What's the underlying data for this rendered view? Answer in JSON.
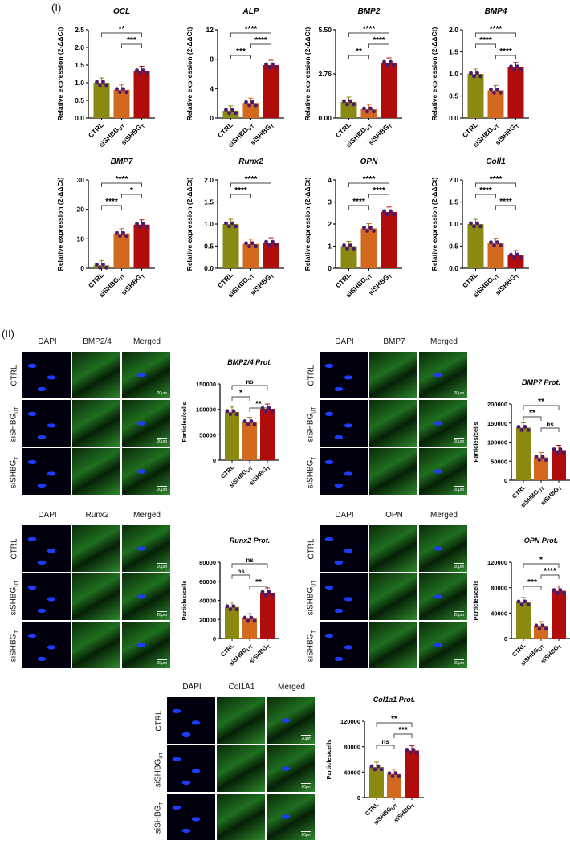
{
  "section_labels": {
    "part1": "(I)",
    "part2": "(II)"
  },
  "colors": {
    "CTRL": "#8a8a12",
    "siSHBG_UT": "#d2691e",
    "siSHBG_T": "#b00c0c",
    "dot": "#4b1a6b",
    "dapi": "#1e3cff",
    "green": "#33c533"
  },
  "groups": [
    "CTRL",
    "siSHBG_UT",
    "siSHBG_T"
  ],
  "group_labels": [
    {
      "main": "CTRL",
      "sub": ""
    },
    {
      "main": "siSHBG",
      "sub": "UT"
    },
    {
      "main": "siSHBG",
      "sub": "T"
    }
  ],
  "microscopy": {
    "columns_suffix": "Merged",
    "dapi": "DAPI",
    "scale_bar": "20μm",
    "panels": [
      {
        "marker": "BMP2/4"
      },
      {
        "marker": "BMP7"
      },
      {
        "marker": "Runx2"
      },
      {
        "marker": "OPN"
      },
      {
        "marker": "Col1A1"
      }
    ]
  },
  "chart_data": [
    {
      "type": "bar",
      "title": "OCL",
      "ylabel": "Relative expression (2^-ΔΔCt)",
      "categories": [
        "CTRL",
        "siSHBG_UT",
        "siSHBG_T"
      ],
      "values": [
        1.0,
        0.8,
        1.33
      ],
      "ylim": [
        0,
        2.5
      ],
      "yticks": [
        "0.0",
        "0.5",
        "1.0",
        "1.5",
        "2.0",
        "2.5"
      ],
      "sig": [
        {
          "from": 0,
          "to": 2,
          "label": "**"
        },
        {
          "from": 1,
          "to": 2,
          "label": "***"
        }
      ]
    },
    {
      "type": "bar",
      "title": "ALP",
      "ylabel": "Relative expression (2^-ΔΔCt)",
      "categories": [
        "CTRL",
        "siSHBG_UT",
        "siSHBG_T"
      ],
      "values": [
        1.0,
        2.05,
        7.2
      ],
      "ylim": [
        0,
        12
      ],
      "yticks": [
        "0",
        "4",
        "8",
        "12"
      ],
      "sig": [
        {
          "from": 0,
          "to": 2,
          "label": "****"
        },
        {
          "from": 1,
          "to": 2,
          "label": "****"
        },
        {
          "from": 0,
          "to": 1,
          "label": "***"
        }
      ]
    },
    {
      "type": "bar",
      "title": "BMP2",
      "ylabel": "Relative expression (2^-ΔΔCt)",
      "categories": [
        "CTRL",
        "siSHBG_UT",
        "siSHBG_T"
      ],
      "values": [
        1.0,
        0.55,
        3.45
      ],
      "ylim": [
        0,
        5.5
      ],
      "yticks": [
        "0.00",
        "2.76",
        "5.50"
      ],
      "sig": [
        {
          "from": 0,
          "to": 2,
          "label": "****"
        },
        {
          "from": 1,
          "to": 2,
          "label": "****"
        },
        {
          "from": 0,
          "to": 1,
          "label": "**"
        }
      ]
    },
    {
      "type": "bar",
      "title": "BMP4",
      "ylabel": "Relative expression (2^-ΔΔCt)",
      "categories": [
        "CTRL",
        "siSHBG_UT",
        "siSHBG_T"
      ],
      "values": [
        1.0,
        0.63,
        1.15
      ],
      "ylim": [
        0,
        2.0
      ],
      "yticks": [
        "0.0",
        "0.5",
        "1.0",
        "1.5",
        "2.0"
      ],
      "sig": [
        {
          "from": 0,
          "to": 2,
          "label": "****"
        },
        {
          "from": 0,
          "to": 1,
          "label": "****"
        },
        {
          "from": 1,
          "to": 2,
          "label": "****"
        }
      ]
    },
    {
      "type": "bar",
      "title": "BMP7",
      "ylabel": "Relative expression (2^-ΔΔCt)",
      "categories": [
        "CTRL",
        "siSHBG_UT",
        "siSHBG_T"
      ],
      "values": [
        1.0,
        11.8,
        14.8
      ],
      "ylim": [
        0,
        30
      ],
      "yticks": [
        "0",
        "10",
        "20",
        "30"
      ],
      "sig": [
        {
          "from": 0,
          "to": 2,
          "label": "****"
        },
        {
          "from": 1,
          "to": 2,
          "label": "*"
        },
        {
          "from": 0,
          "to": 1,
          "label": "****"
        }
      ]
    },
    {
      "type": "bar",
      "title": "Runx2",
      "ylabel": "Relative expression (2^-ΔΔCt)",
      "categories": [
        "CTRL",
        "siSHBG_UT",
        "siSHBG_T"
      ],
      "values": [
        1.0,
        0.55,
        0.58
      ],
      "ylim": [
        0,
        2.0
      ],
      "yticks": [
        "0.0",
        "0.5",
        "1.0",
        "1.5",
        "2.0"
      ],
      "sig": [
        {
          "from": 0,
          "to": 2,
          "label": "****"
        },
        {
          "from": 0,
          "to": 1,
          "label": "****"
        }
      ]
    },
    {
      "type": "bar",
      "title": "OPN",
      "ylabel": "Relative expression (2^-ΔΔCt)",
      "categories": [
        "CTRL",
        "siSHBG_UT",
        "siSHBG_T"
      ],
      "values": [
        1.0,
        1.8,
        2.55
      ],
      "ylim": [
        0,
        4
      ],
      "yticks": [
        "0",
        "1",
        "2",
        "3",
        "4"
      ],
      "sig": [
        {
          "from": 0,
          "to": 2,
          "label": "****"
        },
        {
          "from": 1,
          "to": 2,
          "label": "****"
        },
        {
          "from": 0,
          "to": 1,
          "label": "****"
        }
      ]
    },
    {
      "type": "bar",
      "title": "Coll1",
      "ylabel": "Relative expression (2^-ΔΔCt)",
      "categories": [
        "CTRL",
        "siSHBG_UT",
        "siSHBG_T"
      ],
      "values": [
        1.0,
        0.57,
        0.29
      ],
      "ylim": [
        0,
        2.0
      ],
      "yticks": [
        "0.0",
        "0.5",
        "1.0",
        "1.5",
        "2.0"
      ],
      "sig": [
        {
          "from": 0,
          "to": 2,
          "label": "****"
        },
        {
          "from": 0,
          "to": 1,
          "label": "****"
        },
        {
          "from": 1,
          "to": 2,
          "label": "****"
        }
      ]
    },
    {
      "type": "bar",
      "title": "BMP2/4 Prot.",
      "ylabel": "Particles/cells",
      "categories": [
        "CTRL",
        "siSHBG_UT",
        "siSHBG_T"
      ],
      "values": [
        95000,
        75000,
        101000
      ],
      "ylim": [
        0,
        150000
      ],
      "yticks": [
        "0",
        "50000",
        "100000",
        "150000"
      ],
      "sig": [
        {
          "from": 0,
          "to": 2,
          "label": "ns"
        },
        {
          "from": 0,
          "to": 1,
          "label": "*"
        },
        {
          "from": 1,
          "to": 2,
          "label": "**"
        }
      ]
    },
    {
      "type": "bar",
      "title": "BMP7 Prot.",
      "ylabel": "Particles/cells",
      "categories": [
        "CTRL",
        "siSHBG_UT",
        "siSHBG_T"
      ],
      "values": [
        138000,
        60000,
        79000
      ],
      "ylim": [
        0,
        200000
      ],
      "yticks": [
        "0",
        "50000",
        "100000",
        "150000",
        "200000"
      ],
      "sig": [
        {
          "from": 0,
          "to": 2,
          "label": "**"
        },
        {
          "from": 0,
          "to": 1,
          "label": "**"
        },
        {
          "from": 1,
          "to": 2,
          "label": "ns"
        }
      ]
    },
    {
      "type": "bar",
      "title": "Runx2 Prot.",
      "ylabel": "Particles/cells",
      "categories": [
        "CTRL",
        "siSHBG_UT",
        "siSHBG_T"
      ],
      "values": [
        33000,
        21000,
        48000
      ],
      "ylim": [
        0,
        80000
      ],
      "yticks": [
        "0",
        "20000",
        "40000",
        "60000",
        "80000"
      ],
      "sig": [
        {
          "from": 0,
          "to": 2,
          "label": "ns"
        },
        {
          "from": 0,
          "to": 1,
          "label": "ns"
        },
        {
          "from": 1,
          "to": 2,
          "label": "**"
        }
      ]
    },
    {
      "type": "bar",
      "title": "OPN Prot.",
      "ylabel": "Particles/cells",
      "categories": [
        "CTRL",
        "siSHBG_UT",
        "siSHBG_T"
      ],
      "values": [
        57000,
        19000,
        75000
      ],
      "ylim": [
        0,
        120000
      ],
      "yticks": [
        "0",
        "40000",
        "80000",
        "120000"
      ],
      "sig": [
        {
          "from": 0,
          "to": 2,
          "label": "*"
        },
        {
          "from": 1,
          "to": 2,
          "label": "****"
        },
        {
          "from": 0,
          "to": 1,
          "label": "***"
        }
      ]
    },
    {
      "type": "bar",
      "title": "Col1a1 Prot.",
      "ylabel": "Particles/cells",
      "categories": [
        "CTRL",
        "siSHBG_UT",
        "siSHBG_T"
      ],
      "values": [
        48000,
        37000,
        74000
      ],
      "ylim": [
        0,
        120000
      ],
      "yticks": [
        "0",
        "40000",
        "80000",
        "120000"
      ],
      "sig": [
        {
          "from": 0,
          "to": 2,
          "label": "**"
        },
        {
          "from": 1,
          "to": 2,
          "label": "***"
        },
        {
          "from": 0,
          "to": 1,
          "label": "ns"
        }
      ]
    }
  ]
}
